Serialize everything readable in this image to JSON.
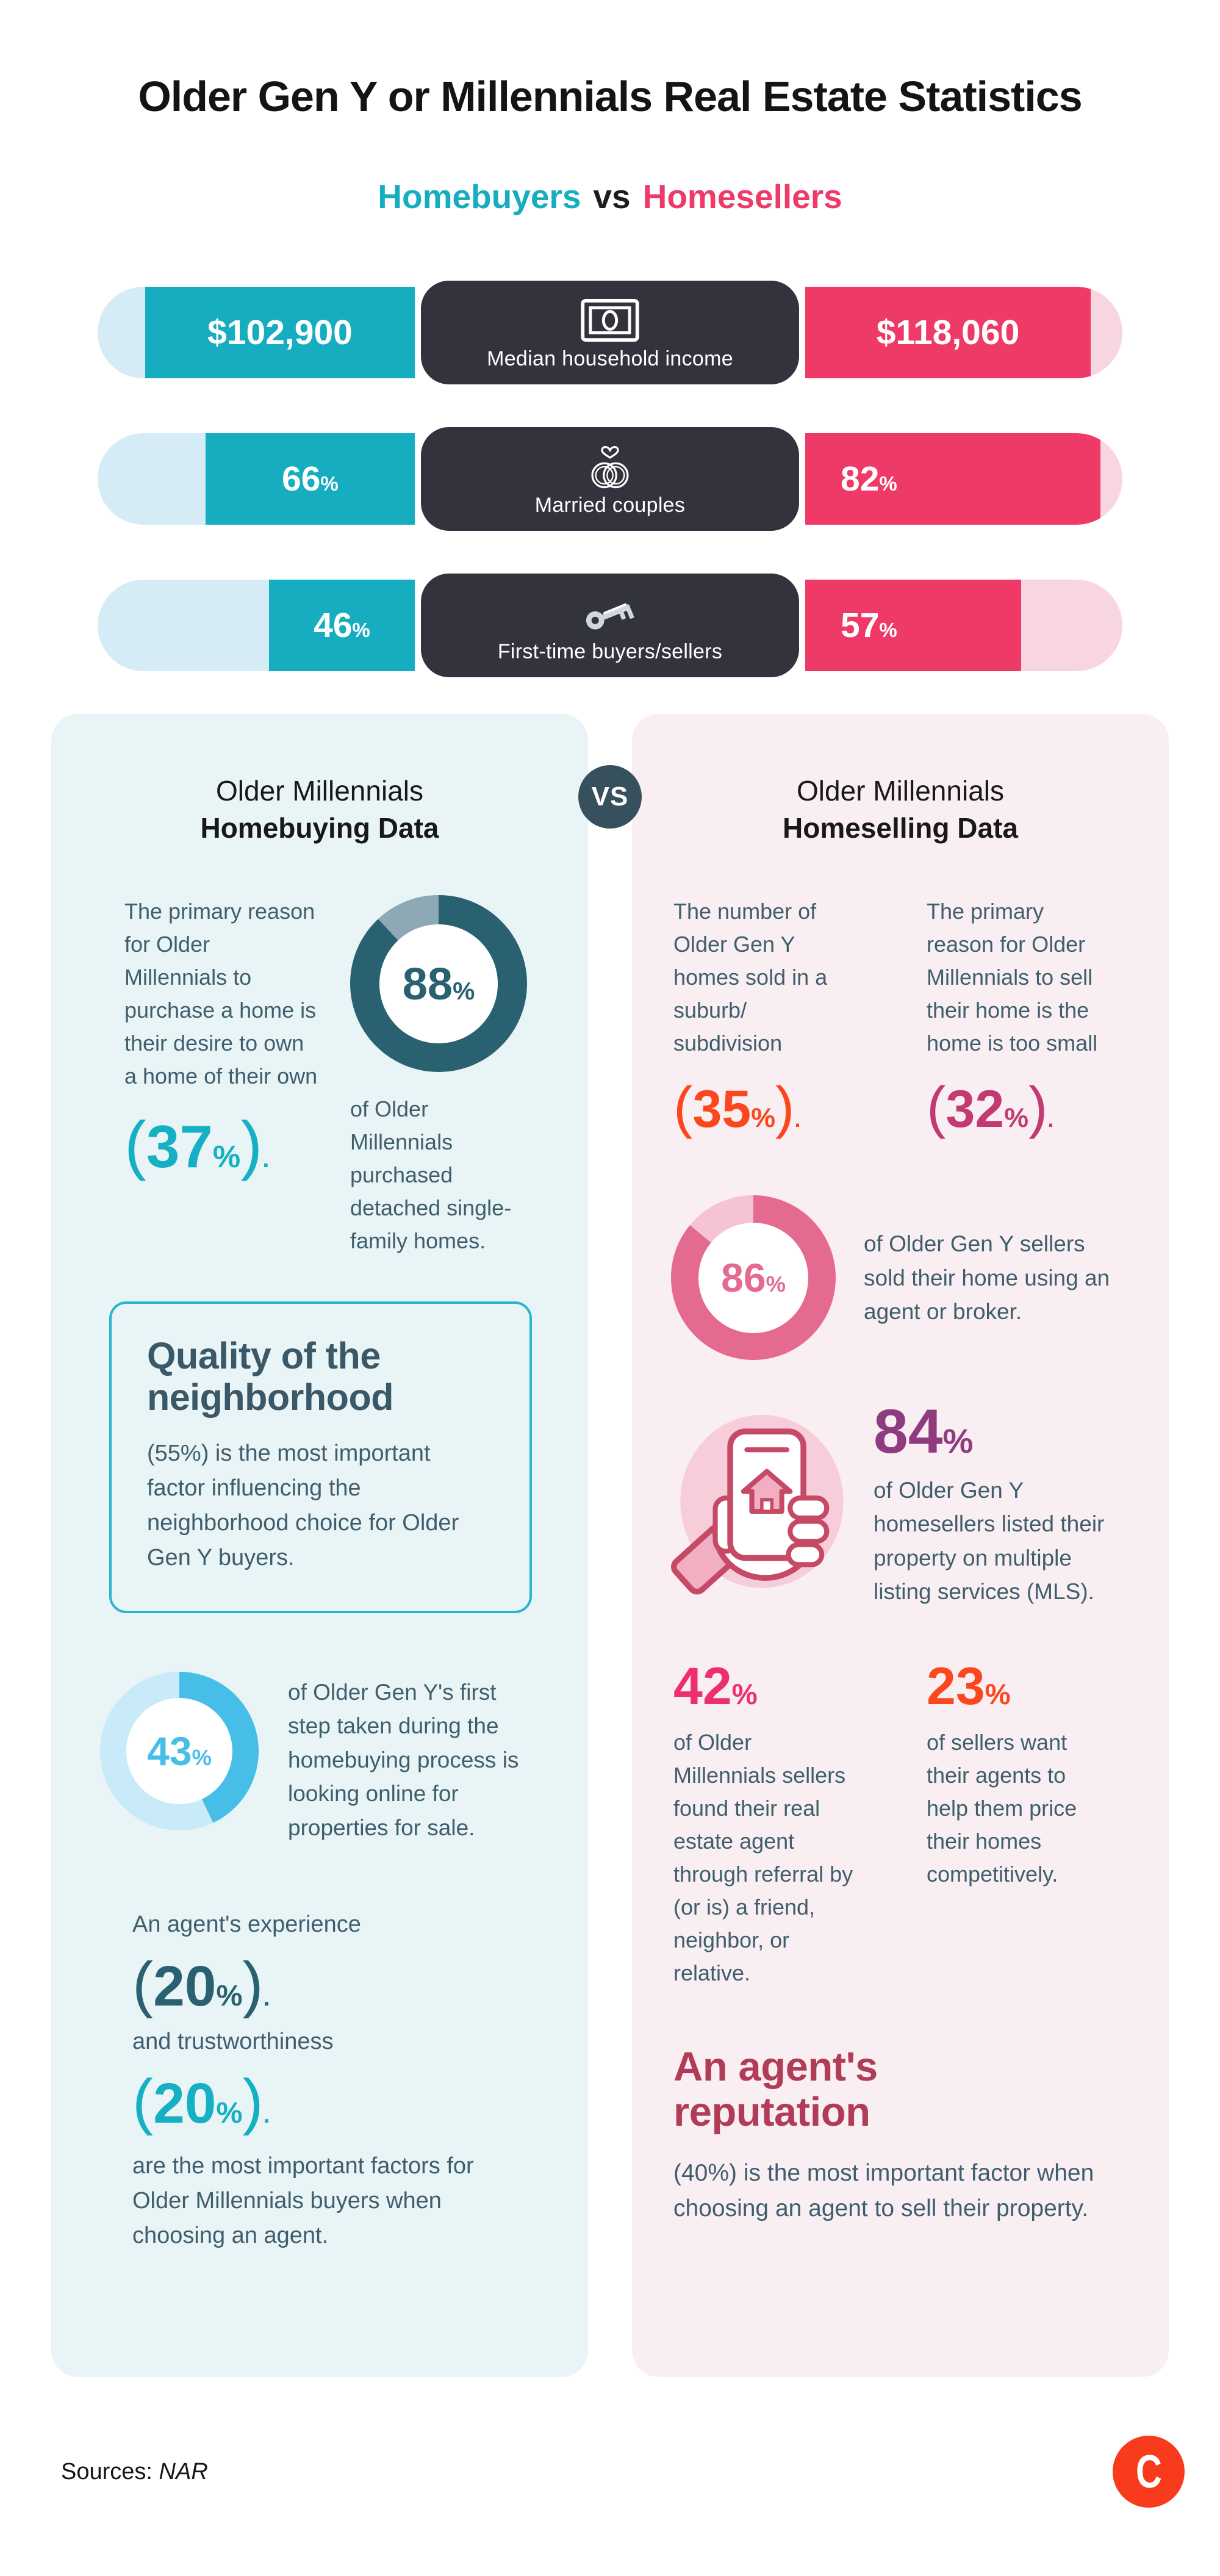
{
  "title": "Older Gen Y or Millennials Real Estate Statistics",
  "subtitle": {
    "left": "Homebuyers",
    "vs": "vs",
    "right": "Homesellers"
  },
  "colors": {
    "teal": "#17adc0",
    "teal_track": "#d5ecf6",
    "pink": "#ef3a67",
    "pink_track": "#f8d6e1",
    "dark_pill": "#32333c",
    "vs_badge": "#36505d",
    "slate": "#3f5e6d",
    "cyan": "#15b0c4",
    "dark_teal": "#2a6170",
    "steel_track": "#8ea9b6",
    "sky": "#47bee8",
    "sky_track": "#c9eaf8",
    "rose": "#e56a90",
    "rose_track": "#f5c3d5",
    "purple": "#8e3c7f",
    "magenta": "#c23a72",
    "hot_pink": "#ee2e71",
    "orange": "#fb471d",
    "maroon": "#b03c57",
    "left_panel_bg": "#e8f4f5",
    "right_panel_bg": "#f9eef1",
    "box_border": "#29b4d0",
    "logo": "#f93b1d",
    "icon_crimson": "#c64a66",
    "icon_light_pink": "#f7cdd9",
    "icon_mid_pink": "#f2afc4"
  },
  "rows": [
    {
      "label": "Median household income",
      "icon": "money-icon",
      "left": {
        "num": "$102,900",
        "pct": ""
      },
      "right": {
        "num": "$118,060",
        "pct": ""
      },
      "left_fill": 85,
      "right_fill": 90
    },
    {
      "label": "Married couples",
      "icon": "rings-icon",
      "left": {
        "num": "66",
        "pct": "%"
      },
      "right": {
        "num": "82",
        "pct": "%"
      },
      "left_fill": 66,
      "right_fill": 82
    },
    {
      "label": "First-time buyers/sellers",
      "icon": "key-icon",
      "left": {
        "num": "46",
        "pct": "%"
      },
      "right": {
        "num": "57",
        "pct": "%"
      },
      "left_fill": 46,
      "right_fill": 57
    }
  ],
  "vs_label": "VS",
  "left_panel": {
    "title_line1": "Older Millennials",
    "title_line2": "Homebuying Data",
    "stat1": {
      "text": "The primary reason for Older Millennials to purchase a home is their desire to own a home of their own",
      "open": "(",
      "num": "37",
      "pct": "%",
      "close": ")",
      "dot": "."
    },
    "donut1": {
      "value": 88,
      "num": "88",
      "pct": "%",
      "caption": "of Older Millennials purchased detached single-family homes."
    },
    "quality_box": {
      "title": "Quality of the neighborhood",
      "body": "(55%) is the most important factor influencing the neighborhood choice for Older Gen Y buyers."
    },
    "donut2": {
      "value": 43,
      "num": "43",
      "pct": "%",
      "caption": "of Older Gen Y's first step taken during the homebuying process is looking online for properties for sale."
    },
    "agent": {
      "line1": "An agent's experience",
      "big1": {
        "open": "(",
        "num": "20",
        "pct": "%",
        "close": ")",
        "dot": "."
      },
      "line2": "and trustworthiness",
      "big2": {
        "open": "(",
        "num": "20",
        "pct": "%",
        "close": ")",
        "dot": "."
      },
      "closing": "are the most important factors for Older Millennials buyers when choosing an agent."
    }
  },
  "right_panel": {
    "title_line1": "Older Millennials",
    "title_line2": "Homeselling Data",
    "suburb": {
      "text": "The number of Older Gen Y homes sold in a suburb/ subdivision",
      "open": "(",
      "num": "35",
      "pct": "%",
      "close": ")",
      "dot": "."
    },
    "too_small": {
      "text": "The primary reason for Older Millennials to sell their home is the home is too small",
      "open": "(",
      "num": "32",
      "pct": "%",
      "close": ")",
      "dot": "."
    },
    "donut3": {
      "value": 86,
      "num": "86",
      "pct": "%",
      "caption": "of Older Gen Y sellers sold their home using an agent or broker."
    },
    "mls": {
      "num": "84",
      "pct": "%",
      "caption": "of Older Gen Y homesellers listed their property on multiple listing services (MLS)."
    },
    "referral": {
      "num": "42",
      "pct": "%",
      "caption": "of Older Millennials sellers found their real estate agent through referral by (or is) a friend, neighbor, or relative."
    },
    "pricing": {
      "num": "23",
      "pct": "%",
      "caption": "of sellers want their agents to help them price their homes competitively."
    },
    "reputation": {
      "title": "An agent's reputation",
      "body": "(40%) is the most important factor when choosing an agent to sell their property."
    }
  },
  "footer": {
    "sources_label": "Sources:",
    "sources_value": "NAR",
    "logo_letter": "C"
  },
  "chart_data": [
    {
      "type": "bar",
      "title": "Homebuyers vs Homesellers",
      "categories": [
        "Median household income",
        "Married couples",
        "First-time buyers/sellers"
      ],
      "series": [
        {
          "name": "Homebuyers",
          "values": [
            102900,
            66,
            46
          ],
          "color": "#17adc0"
        },
        {
          "name": "Homesellers",
          "values": [
            118060,
            82,
            57
          ],
          "color": "#ef3a67"
        }
      ],
      "value_labels": [
        [
          "$102,900",
          "$118,060"
        ],
        [
          "66%",
          "82%"
        ],
        [
          "46%",
          "57%"
        ]
      ],
      "legend_position": "top"
    },
    {
      "type": "pie",
      "title": "Older Millennials who purchased detached single-family homes",
      "values": [
        88,
        12
      ],
      "labels": [
        "detached single-family",
        "other"
      ],
      "colors": [
        "#2a6170",
        "#8ea9b6"
      ]
    },
    {
      "type": "pie",
      "title": "Older Gen Y whose first homebuying step is looking online for properties",
      "values": [
        43,
        57
      ],
      "labels": [
        "looked online first",
        "other"
      ],
      "colors": [
        "#47bee8",
        "#c9eaf8"
      ]
    },
    {
      "type": "pie",
      "title": "Older Gen Y sellers who sold their home using an agent or broker",
      "values": [
        86,
        14
      ],
      "labels": [
        "used agent or broker",
        "other"
      ],
      "colors": [
        "#e56a90",
        "#f5c3d5"
      ]
    },
    {
      "type": "table",
      "title": "Other stats",
      "rows": [
        [
          "Primary reason to purchase: desire to own a home of their own",
          "37%"
        ],
        [
          "Quality of the neighborhood: most important factor for neighborhood choice",
          "55%"
        ],
        [
          "Agent's experience: most important factor choosing an agent (buyers)",
          "20%"
        ],
        [
          "Agent's trustworthiness: most important factor choosing an agent (buyers)",
          "20%"
        ],
        [
          "Older Gen Y homes sold in a suburb/subdivision",
          "35%"
        ],
        [
          "Primary reason to sell: home is too small",
          "32%"
        ],
        [
          "Homesellers who listed property on MLS",
          "84%"
        ],
        [
          "Sellers who found agent through referral by friend/neighbor/relative",
          "42%"
        ],
        [
          "Sellers who want agents to help price their homes competitively",
          "23%"
        ],
        [
          "Agent's reputation: most important factor choosing an agent to sell",
          "40%"
        ]
      ]
    }
  ]
}
